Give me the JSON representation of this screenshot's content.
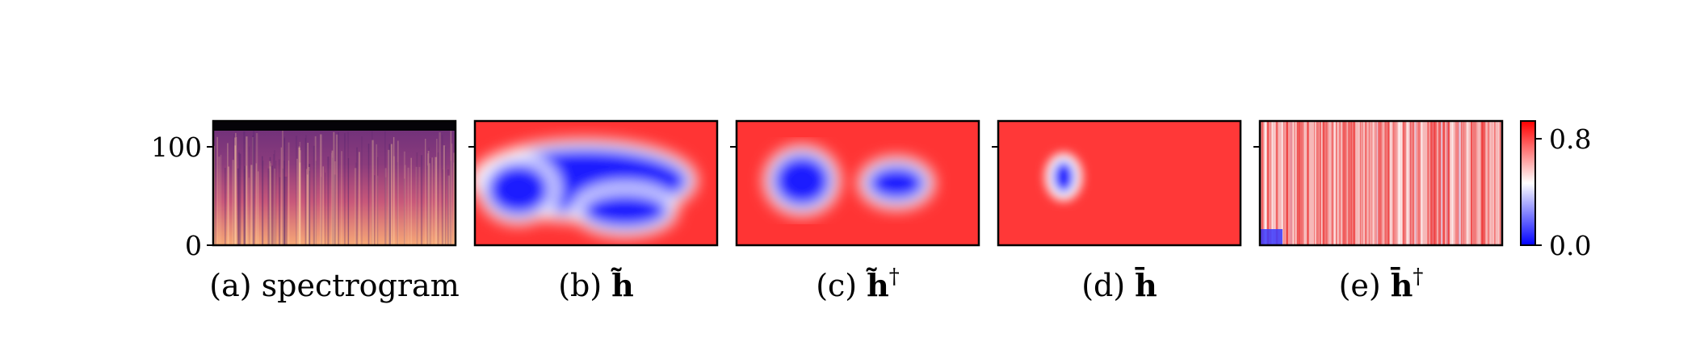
{
  "chart_data": [
    {
      "type": "heatmap",
      "id": "a",
      "caption": "(a) spectrogram",
      "colormap": "magma",
      "ylim": [
        0,
        128
      ],
      "yticks": [
        0,
        100
      ],
      "ytick_labels": [
        "0",
        "100"
      ],
      "note_rows": "rows above ~120 are black (zero energy); lower rows brighter"
    },
    {
      "type": "heatmap",
      "id": "b",
      "caption_prefix": "(b)",
      "caption_symbol": "h̃",
      "caption_sup": "",
      "colormap": "bwr",
      "blue_regions": [
        {
          "cx": 0.45,
          "cy": 0.48,
          "rx": 0.45,
          "ry": 0.3
        },
        {
          "cx": 0.18,
          "cy": 0.55,
          "rx": 0.15,
          "ry": 0.25
        },
        {
          "cx": 0.62,
          "cy": 0.72,
          "rx": 0.2,
          "ry": 0.18
        }
      ]
    },
    {
      "type": "heatmap",
      "id": "c",
      "caption_prefix": "(c)",
      "caption_symbol": "h̃",
      "caption_sup": "†",
      "colormap": "bwr",
      "blue_regions": [
        {
          "cx": 0.27,
          "cy": 0.48,
          "rx": 0.14,
          "ry": 0.25
        },
        {
          "cx": 0.66,
          "cy": 0.5,
          "rx": 0.14,
          "ry": 0.18
        }
      ]
    },
    {
      "type": "heatmap",
      "id": "d",
      "caption_prefix": "(d)",
      "caption_symbol": "h̄",
      "caption_sup": "",
      "colormap": "bwr",
      "blue_regions": [
        {
          "cx": 0.27,
          "cy": 0.45,
          "rx": 0.06,
          "ry": 0.16
        }
      ]
    },
    {
      "type": "heatmap",
      "id": "e",
      "caption_prefix": "(e)",
      "caption_symbol": "h̄",
      "caption_sup": "†",
      "colormap": "bwr",
      "pattern": "noisy light red with vertical streaks; small blue patch bottom-left"
    }
  ],
  "colorbar": {
    "colormap": "bwr",
    "range": [
      0.0,
      0.9
    ],
    "ticks": [
      0.0,
      0.8
    ],
    "tick_labels": [
      "0.0",
      "0.8"
    ]
  }
}
